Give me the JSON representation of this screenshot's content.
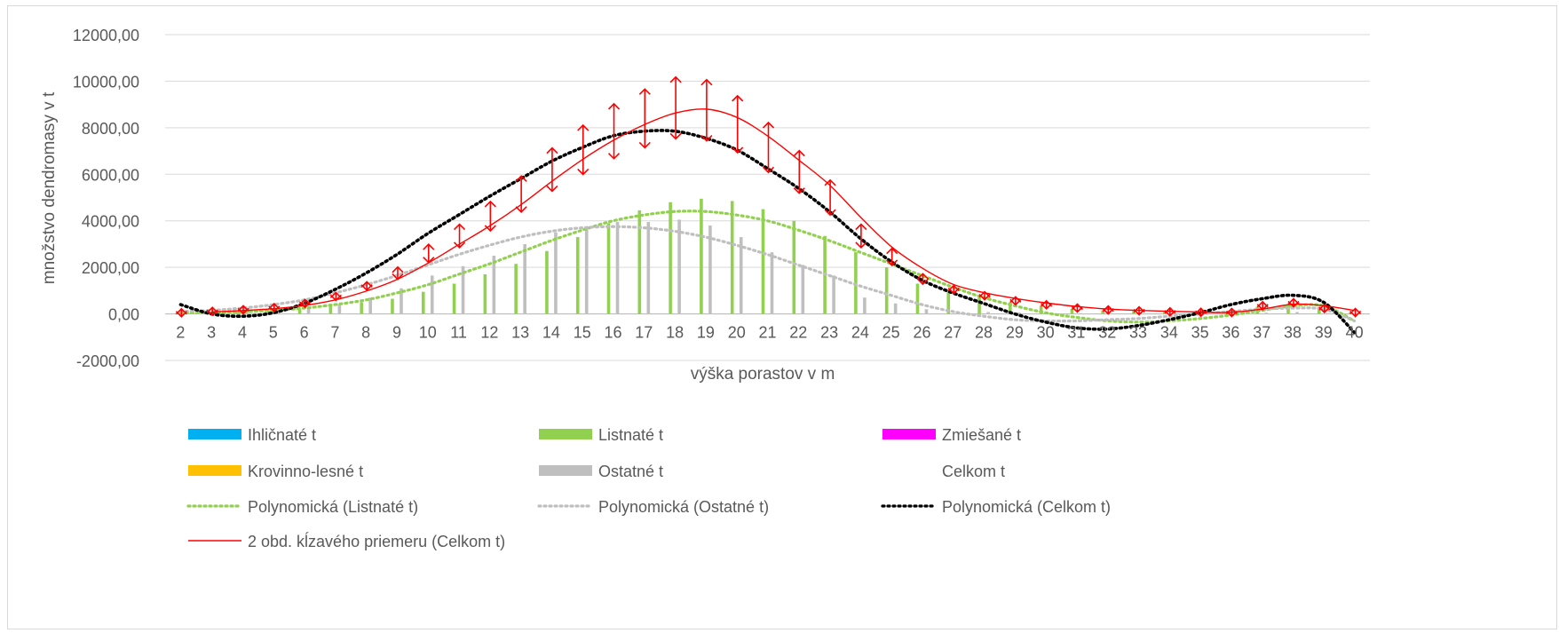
{
  "chart_data": {
    "type": "bar",
    "xlabel": "výška porastov v m",
    "ylabel": "množstvo dendromasy v t",
    "ylim": [
      -2000,
      12000
    ],
    "yticks": [
      -2000,
      0,
      2000,
      4000,
      6000,
      8000,
      10000,
      12000
    ],
    "ytick_labels": [
      "-2000,00",
      "0,00",
      "2000,00",
      "4000,00",
      "6000,00",
      "8000,00",
      "10000,00",
      "12000,00"
    ],
    "categories": [
      "2",
      "3",
      "4",
      "5",
      "6",
      "7",
      "8",
      "9",
      "10",
      "11",
      "12",
      "13",
      "14",
      "15",
      "16",
      "17",
      "18",
      "19",
      "20",
      "21",
      "22",
      "23",
      "24",
      "25",
      "26",
      "27",
      "28",
      "29",
      "30",
      "31",
      "32",
      "33",
      "34",
      "35",
      "36",
      "37",
      "38",
      "39",
      "40"
    ],
    "grid": true,
    "legend_position": "bottom",
    "colors": {
      "ihlicnate": "#00b0f0",
      "listnate": "#92d050",
      "zmiesane": "#ff00ff",
      "krovinno": "#ffc000",
      "ostatne": "#bfbfbf",
      "trend_listnate": "#92d050",
      "trend_ostatne": "#bfbfbf",
      "trend_celkom": "#000000",
      "moving_avg": "#ff0000",
      "error_bars": "#ff0000"
    },
    "series": [
      {
        "name": "Ihličnaté t",
        "kind": "bar",
        "values": [
          0,
          0,
          0,
          0,
          0,
          0,
          0,
          0,
          0,
          0,
          0,
          0,
          0,
          0,
          0,
          0,
          0,
          0,
          0,
          0,
          0,
          0,
          0,
          0,
          0,
          0,
          0,
          0,
          0,
          0,
          0,
          0,
          0,
          0,
          0,
          0,
          0,
          0,
          0
        ]
      },
      {
        "name": "Listnaté t",
        "kind": "bar",
        "values": [
          20,
          50,
          80,
          120,
          200,
          350,
          500,
          650,
          950,
          1300,
          1700,
          2150,
          2700,
          3300,
          3900,
          4450,
          4800,
          4950,
          4850,
          4500,
          4000,
          3350,
          2650,
          2000,
          1300,
          950,
          700,
          500,
          350,
          220,
          150,
          120,
          80,
          60,
          50,
          300,
          400,
          200,
          50
        ]
      },
      {
        "name": "Zmiešané t",
        "kind": "bar",
        "values": [
          0,
          0,
          0,
          0,
          0,
          0,
          0,
          0,
          0,
          0,
          0,
          0,
          0,
          0,
          0,
          0,
          0,
          0,
          0,
          0,
          0,
          0,
          0,
          0,
          0,
          0,
          0,
          0,
          0,
          0,
          0,
          0,
          0,
          0,
          0,
          0,
          0,
          0,
          0
        ]
      },
      {
        "name": "Krovinno-lesné t",
        "kind": "bar",
        "values": [
          0,
          0,
          0,
          0,
          0,
          0,
          0,
          0,
          0,
          0,
          0,
          0,
          0,
          0,
          0,
          0,
          0,
          0,
          0,
          0,
          0,
          0,
          0,
          0,
          0,
          0,
          0,
          0,
          0,
          0,
          0,
          0,
          0,
          0,
          0,
          0,
          0,
          0,
          0
        ]
      },
      {
        "name": "Ostatné t",
        "kind": "bar",
        "values": [
          30,
          60,
          100,
          150,
          250,
          400,
          700,
          1100,
          1650,
          2050,
          2500,
          3000,
          3500,
          3750,
          3950,
          3950,
          4050,
          3800,
          3300,
          2650,
          2100,
          1650,
          700,
          450,
          200,
          100,
          80,
          60,
          40,
          30,
          20,
          15,
          10,
          10,
          10,
          50,
          80,
          30,
          10
        ]
      },
      {
        "name": "Celkom t",
        "kind": "hidden",
        "values": [
          50,
          110,
          180,
          270,
          450,
          750,
          1200,
          1750,
          2600,
          3350,
          4200,
          5150,
          6200,
          7050,
          7850,
          8400,
          8850,
          8750,
          8150,
          7150,
          6100,
          5000,
          3350,
          2450,
          1500,
          1050,
          780,
          560,
          390,
          250,
          170,
          135,
          90,
          70,
          60,
          350,
          480,
          230,
          60
        ]
      },
      {
        "name": "Polynomická (Listnaté t)",
        "kind": "trend",
        "values": [
          50,
          60,
          90,
          150,
          250,
          400,
          600,
          900,
          1250,
          1700,
          2150,
          2650,
          3150,
          3600,
          4000,
          4250,
          4400,
          4400,
          4250,
          4000,
          3600,
          3150,
          2650,
          2150,
          1650,
          1150,
          700,
          350,
          50,
          -150,
          -300,
          -350,
          -300,
          -200,
          -50,
          150,
          350,
          350,
          -300
        ]
      },
      {
        "name": "Polynomická (Ostatné t)",
        "kind": "trend",
        "values": [
          100,
          150,
          250,
          400,
          600,
          900,
          1250,
          1650,
          2100,
          2550,
          2950,
          3300,
          3550,
          3700,
          3750,
          3700,
          3550,
          3300,
          2950,
          2550,
          2100,
          1650,
          1200,
          800,
          400,
          100,
          -100,
          -250,
          -300,
          -300,
          -250,
          -200,
          -100,
          0,
          100,
          200,
          250,
          200,
          -300
        ]
      },
      {
        "name": "Polynomická (Celkom t)",
        "kind": "trend",
        "values": [
          400,
          0,
          -100,
          50,
          450,
          1050,
          1750,
          2550,
          3450,
          4250,
          5050,
          5800,
          6550,
          7150,
          7650,
          7850,
          7850,
          7550,
          7050,
          6250,
          5400,
          4400,
          3250,
          2250,
          1450,
          900,
          450,
          0,
          -350,
          -600,
          -650,
          -500,
          -250,
          50,
          400,
          650,
          800,
          500,
          -800
        ]
      },
      {
        "name": "2 obd. kĺzavého priemeru (Celkom t)",
        "kind": "moving_avg",
        "values": [
          null,
          80,
          145,
          225,
          360,
          600,
          975,
          1475,
          2175,
          2975,
          3775,
          4675,
          5675,
          6625,
          7450,
          8125,
          8625,
          8800,
          8450,
          7650,
          6625,
          5550,
          4175,
          2900,
          1975,
          1275,
          915,
          670,
          475,
          320,
          210,
          152,
          112,
          80,
          65,
          205,
          415,
          355,
          145
        ]
      }
    ],
    "error_bar_pct": 0.15
  }
}
